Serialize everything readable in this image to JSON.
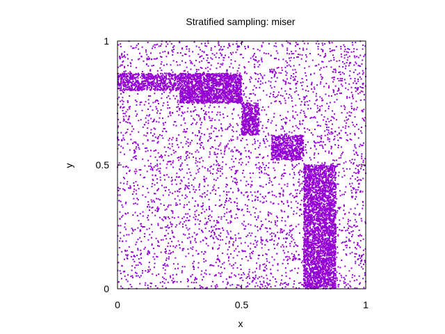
{
  "chart_data": {
    "type": "scatter",
    "title": "Stratified sampling: miser",
    "xlabel": "x",
    "ylabel": "y",
    "xlim": [
      0,
      1
    ],
    "ylim": [
      0,
      1
    ],
    "xticks": [
      {
        "value": 0,
        "label": "0"
      },
      {
        "value": 0.5,
        "label": "0.5"
      },
      {
        "value": 1,
        "label": "1"
      }
    ],
    "yticks": [
      {
        "value": 0,
        "label": "0"
      },
      {
        "value": 0.5,
        "label": "0.5"
      },
      {
        "value": 1,
        "label": "1"
      }
    ],
    "grid": false,
    "legend": "none",
    "point_color": "#9400d3",
    "point_count": 10000,
    "regions": [
      {
        "x": [
          0.0,
          1.0
        ],
        "y": [
          0.0,
          1.0
        ],
        "relative_density": 1
      },
      {
        "x": [
          0.0,
          0.25
        ],
        "y": [
          0.8,
          0.87
        ],
        "relative_density": 10
      },
      {
        "x": [
          0.25,
          0.5
        ],
        "y": [
          0.75,
          0.87
        ],
        "relative_density": 14
      },
      {
        "x": [
          0.5,
          0.57
        ],
        "y": [
          0.62,
          0.75
        ],
        "relative_density": 14
      },
      {
        "x": [
          0.62,
          0.75
        ],
        "y": [
          0.52,
          0.62
        ],
        "relative_density": 12
      },
      {
        "x": [
          0.75,
          0.88
        ],
        "y": [
          0.0,
          0.5
        ],
        "relative_density": 13
      }
    ]
  }
}
